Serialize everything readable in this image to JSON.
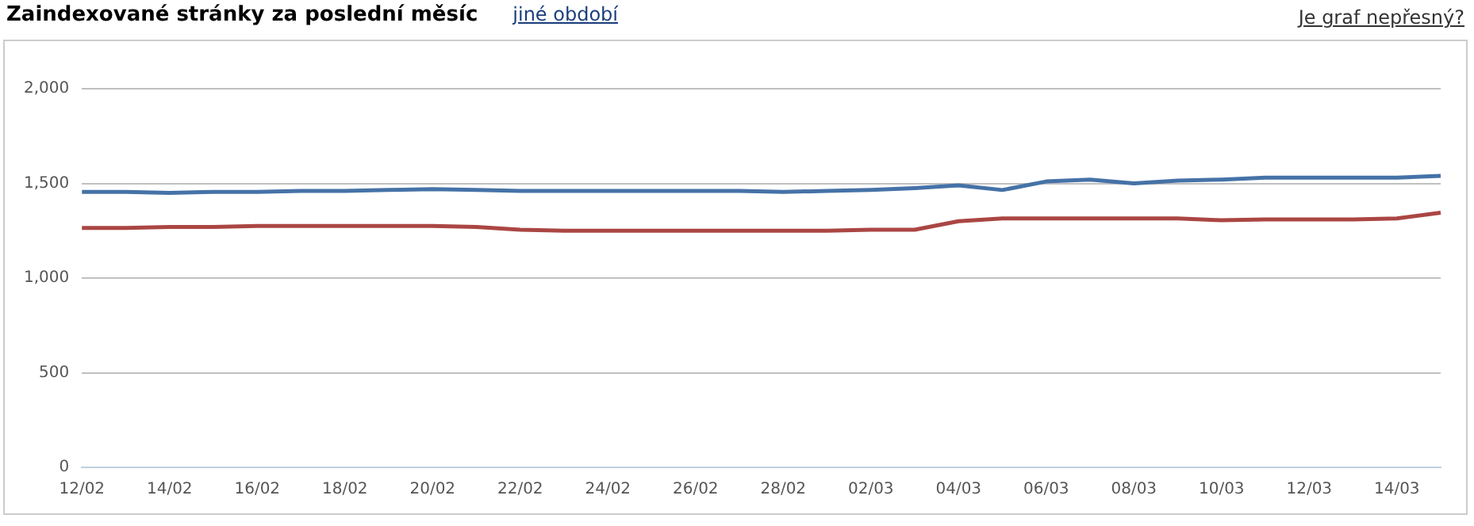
{
  "chart_data": {
    "type": "line",
    "title": "Zaindexované stránky za poslední měsíc",
    "annotations": [
      "jiné období",
      "Je graf nepřesný?"
    ],
    "categories": [
      "12/02",
      null,
      "14/02",
      null,
      "16/02",
      null,
      "18/02",
      null,
      "20/02",
      null,
      "22/02",
      null,
      "24/02",
      null,
      "26/02",
      null,
      "28/02",
      null,
      "02/03",
      null,
      "04/03",
      null,
      "06/03",
      null,
      "08/03",
      null,
      "10/03",
      null,
      "12/03",
      null,
      "14/03",
      null
    ],
    "series": [
      {
        "color": "#4572a7",
        "values": [
          1455,
          1455,
          1450,
          1455,
          1455,
          1460,
          1460,
          1465,
          1470,
          1465,
          1460,
          1460,
          1460,
          1460,
          1460,
          1460,
          1455,
          1460,
          1465,
          1475,
          1490,
          1465,
          1510,
          1520,
          1500,
          1515,
          1520,
          1530,
          1530,
          1530,
          1530,
          1540
        ]
      },
      {
        "color": "#aa4643",
        "values": [
          1265,
          1265,
          1270,
          1270,
          1275,
          1275,
          1275,
          1275,
          1275,
          1270,
          1255,
          1250,
          1250,
          1250,
          1250,
          1250,
          1250,
          1250,
          1255,
          1255,
          1300,
          1315,
          1315,
          1315,
          1315,
          1315,
          1305,
          1310,
          1310,
          1310,
          1315,
          1345
        ]
      }
    ],
    "ylim": [
      0,
      2000
    ],
    "yticks": [
      0,
      500,
      {
        "value": 1000,
        "label": "1,000"
      },
      {
        "value": 1500,
        "label": "1,500"
      },
      {
        "value": 2000,
        "label": "2,000"
      }
    ],
    "grid": "y",
    "marker": "none",
    "line_style": "solid",
    "legend": false
  }
}
